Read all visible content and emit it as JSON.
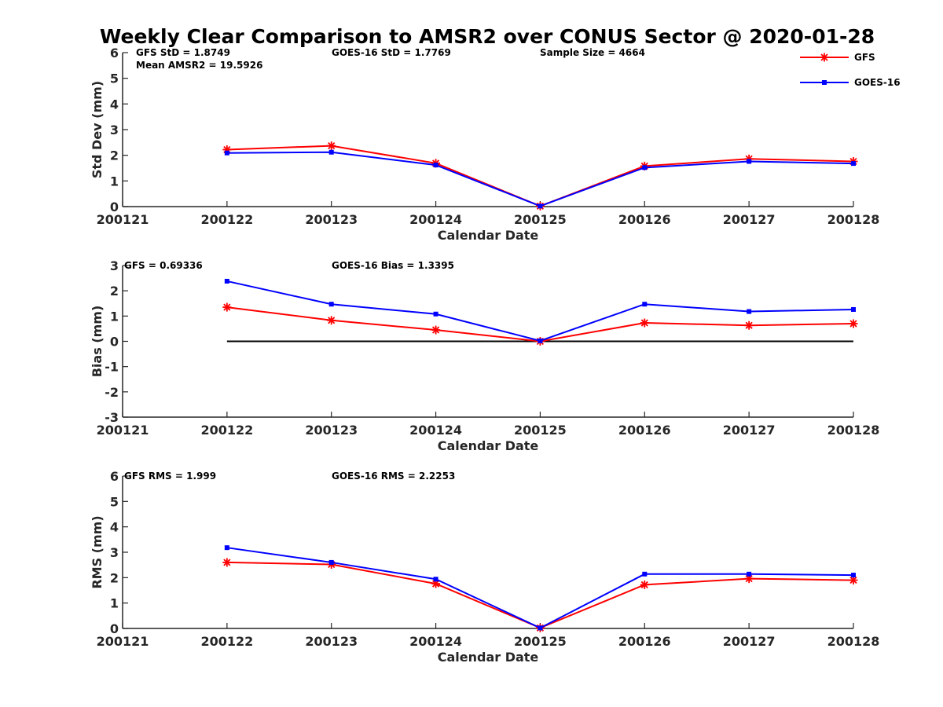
{
  "figure": {
    "title": "Weekly Clear Comparison to AMSR2 over CONUS Sector @ 2020-01-28",
    "legend": {
      "placement": "top-right",
      "entries": [
        "GFS",
        "GOES-16"
      ]
    },
    "colors": {
      "GFS": "#ff0000",
      "GOES-16": "#0000ff",
      "zero_line": "#000000",
      "axes": "#262626"
    }
  },
  "chart_data": [
    {
      "type": "line",
      "title": "",
      "xlabel": "Calendar Date",
      "ylabel": "Std Dev (mm)",
      "x": [
        "200121",
        "200122",
        "200123",
        "200124",
        "200125",
        "200126",
        "200127",
        "200128"
      ],
      "ylim": [
        0,
        6
      ],
      "yticks": [
        0,
        1,
        2,
        3,
        4,
        5,
        6
      ],
      "zero_line": false,
      "annotations": [
        "GFS StD = 1.8749",
        "Mean AMSR2 = 19.5926",
        "GOES-16 StD = 1.7769",
        "Sample Size = 4664"
      ],
      "series": [
        {
          "name": "GFS",
          "color": "#ff0000",
          "marker": "star",
          "values": [
            null,
            2.22,
            2.37,
            1.69,
            0.02,
            1.58,
            1.86,
            1.76
          ]
        },
        {
          "name": "GOES-16",
          "color": "#0000ff",
          "marker": "square",
          "values": [
            null,
            2.09,
            2.12,
            1.62,
            0.02,
            1.52,
            1.76,
            1.68
          ]
        }
      ]
    },
    {
      "type": "line",
      "title": "",
      "xlabel": "Calendar Date",
      "ylabel": "Bias (mm)",
      "x": [
        "200121",
        "200122",
        "200123",
        "200124",
        "200125",
        "200126",
        "200127",
        "200128"
      ],
      "ylim": [
        -3,
        3
      ],
      "yticks": [
        -3,
        -2,
        -1,
        0,
        1,
        2,
        3
      ],
      "zero_line": true,
      "annotations": [
        "GFS = 0.69336",
        "GOES-16 Bias  = 1.3395"
      ],
      "series": [
        {
          "name": "GFS",
          "color": "#ff0000",
          "marker": "star",
          "values": [
            null,
            1.35,
            0.83,
            0.45,
            0.0,
            0.73,
            0.63,
            0.7
          ]
        },
        {
          "name": "GOES-16",
          "color": "#0000ff",
          "marker": "square",
          "values": [
            null,
            2.38,
            1.47,
            1.08,
            0.02,
            1.47,
            1.18,
            1.26
          ]
        }
      ]
    },
    {
      "type": "line",
      "title": "",
      "xlabel": "Calendar Date",
      "ylabel": "RMS (mm)",
      "x": [
        "200121",
        "200122",
        "200123",
        "200124",
        "200125",
        "200126",
        "200127",
        "200128"
      ],
      "ylim": [
        0,
        6
      ],
      "yticks": [
        0,
        1,
        2,
        3,
        4,
        5,
        6
      ],
      "zero_line": false,
      "annotations": [
        "GFS RMS = 1.999",
        "GOES-16 RMS = 2.2253"
      ],
      "series": [
        {
          "name": "GFS",
          "color": "#ff0000",
          "marker": "star",
          "values": [
            null,
            2.6,
            2.52,
            1.76,
            0.02,
            1.72,
            1.96,
            1.9
          ]
        },
        {
          "name": "GOES-16",
          "color": "#0000ff",
          "marker": "square",
          "values": [
            null,
            3.18,
            2.6,
            1.94,
            0.02,
            2.14,
            2.14,
            2.1
          ]
        }
      ]
    }
  ]
}
